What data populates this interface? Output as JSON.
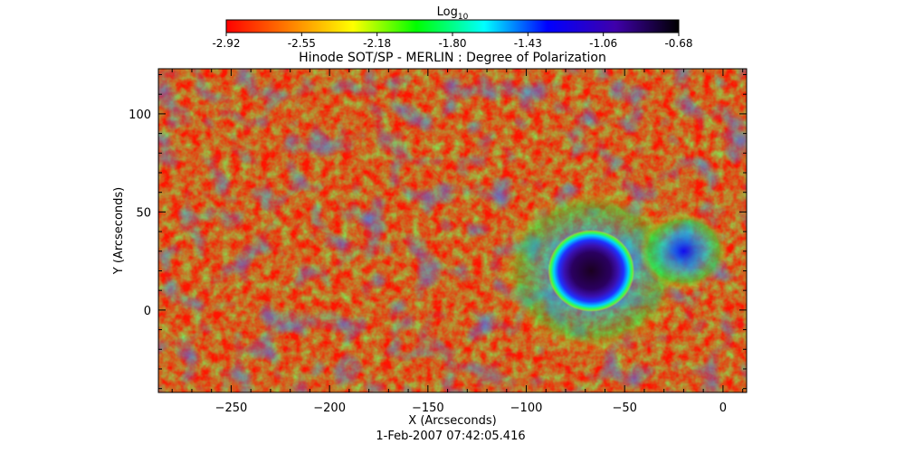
{
  "chart_data": {
    "type": "heatmap",
    "title": "Hinode SOT/SP - MERLIN : Degree of Polarization",
    "xlabel": "X (Arcseconds)",
    "ylabel": "Y (Arcseconds)",
    "footer": "1-Feb-2007 07:42:05.416",
    "xlim": [
      -287,
      12
    ],
    "ylim": [
      -42,
      123
    ],
    "x_ticks": [
      -250,
      -200,
      -150,
      -100,
      -50,
      0
    ],
    "y_ticks": [
      0,
      50,
      100
    ],
    "colorbar": {
      "label": "Log",
      "label_sub": "10",
      "min": -2.92,
      "max": -0.68,
      "ticks": [
        "-2.92",
        "-2.55",
        "-2.18",
        "-1.80",
        "-1.43",
        "-1.06",
        "-0.68"
      ],
      "colors": [
        "#ff0000",
        "#ff7f00",
        "#ffff00",
        "#00ff00",
        "#00ffff",
        "#0000ff",
        "#3f00aa",
        "#000000"
      ]
    },
    "features": [
      {
        "name": "sunspot-umbra",
        "x": -67,
        "y": 20,
        "radius": 12,
        "level": -0.68
      },
      {
        "name": "sunspot-penumbra",
        "x": -67,
        "y": 20,
        "radius": 22,
        "level": -1.15
      },
      {
        "name": "plage-east",
        "x": -20,
        "y": 30,
        "radius": 14,
        "level": -1.2
      }
    ]
  }
}
